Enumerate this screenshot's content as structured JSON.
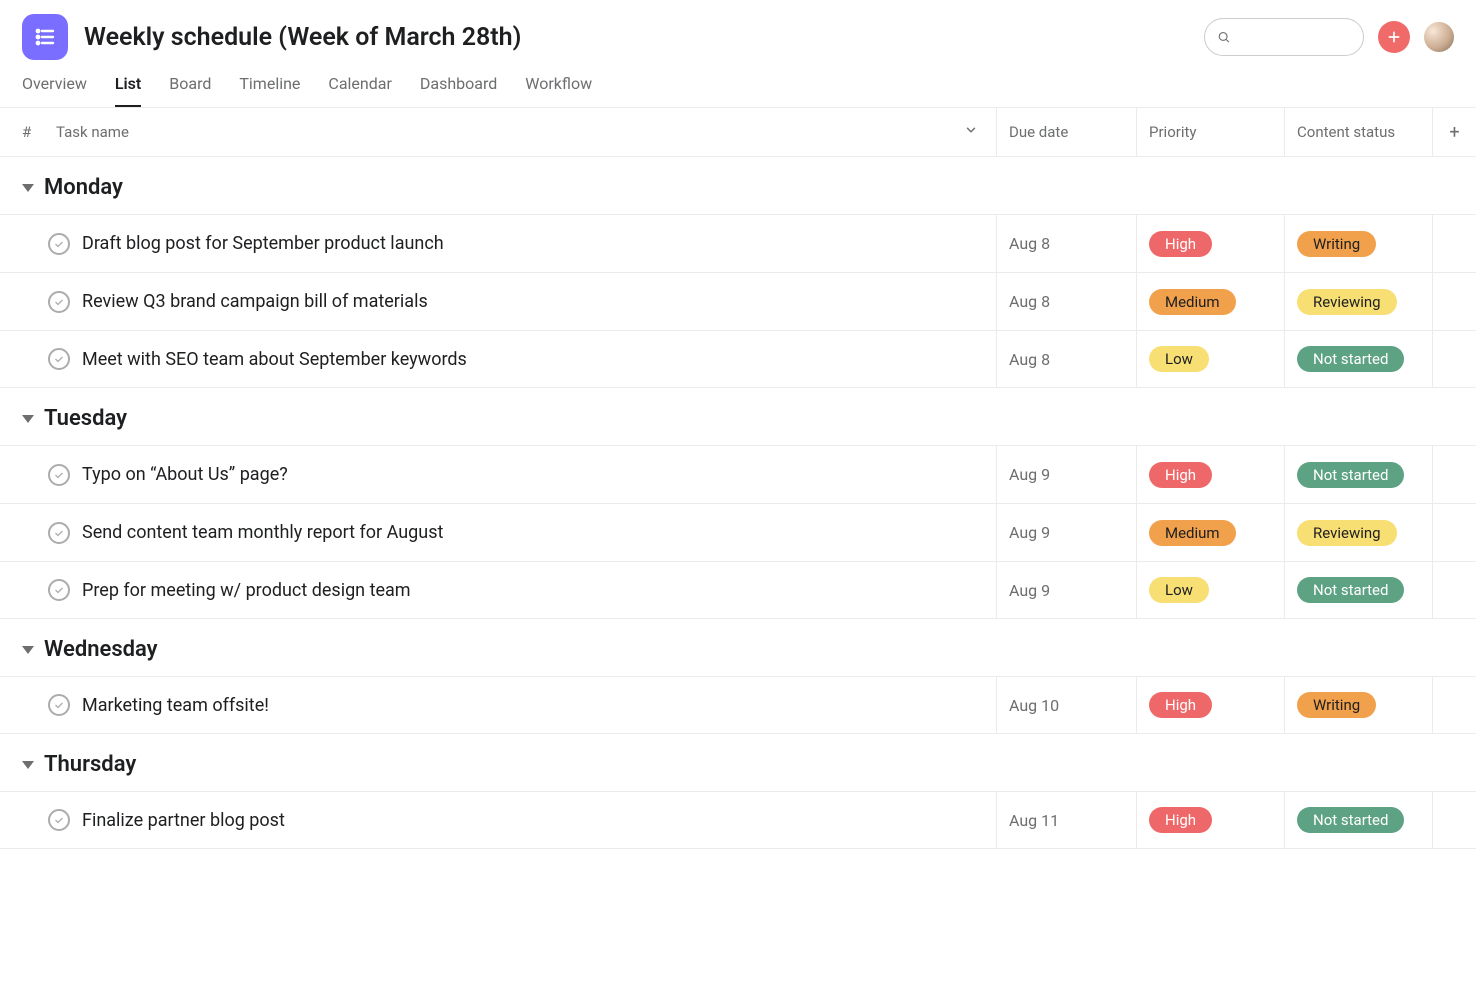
{
  "header": {
    "title": "Weekly schedule (Week of March 28th)",
    "logo_bg": "#796eff",
    "search_placeholder": "",
    "add_btn_bg": "#f06a6a"
  },
  "tabs": {
    "items": [
      "Overview",
      "List",
      "Board",
      "Timeline",
      "Calendar",
      "Dashboard",
      "Workflow"
    ],
    "active_index": 1
  },
  "columns": {
    "num": "#",
    "task": "Task name",
    "due": "Due date",
    "priority": "Priority",
    "status": "Content status"
  },
  "priority_colors": {
    "High": "#ee6869",
    "Medium": "#f1a14c",
    "Low": "#f7df73"
  },
  "status_colors": {
    "Writing": "#f1a14c",
    "Reviewing": "#f7df73",
    "Not started": "#5da283"
  },
  "status_text_colors": {
    "Writing": "#1e1f21",
    "Reviewing": "#1e1f21",
    "Not started": "#ffffff"
  },
  "priority_text_colors": {
    "High": "#ffffff",
    "Medium": "#1e1f21",
    "Low": "#1e1f21"
  },
  "sections": [
    {
      "title": "Monday",
      "tasks": [
        {
          "name": "Draft blog post for September product launch",
          "due": "Aug 8",
          "priority": "High",
          "status": "Writing"
        },
        {
          "name": "Review Q3 brand campaign bill of materials",
          "due": "Aug 8",
          "priority": "Medium",
          "status": "Reviewing"
        },
        {
          "name": "Meet with SEO team about September keywords",
          "due": "Aug 8",
          "priority": "Low",
          "status": "Not started"
        }
      ]
    },
    {
      "title": "Tuesday",
      "tasks": [
        {
          "name": "Typo on “About Us” page?",
          "due": "Aug 9",
          "priority": "High",
          "status": "Not started"
        },
        {
          "name": "Send content team monthly report for August",
          "due": "Aug 9",
          "priority": "Medium",
          "status": "Reviewing"
        },
        {
          "name": "Prep for meeting w/ product design team",
          "due": "Aug 9",
          "priority": "Low",
          "status": "Not started"
        }
      ]
    },
    {
      "title": "Wednesday",
      "tasks": [
        {
          "name": "Marketing team offsite!",
          "due": "Aug 10",
          "priority": "High",
          "status": "Writing"
        }
      ]
    },
    {
      "title": "Thursday",
      "tasks": [
        {
          "name": "Finalize partner blog post",
          "due": "Aug 11",
          "priority": "High",
          "status": "Not started"
        }
      ]
    }
  ]
}
